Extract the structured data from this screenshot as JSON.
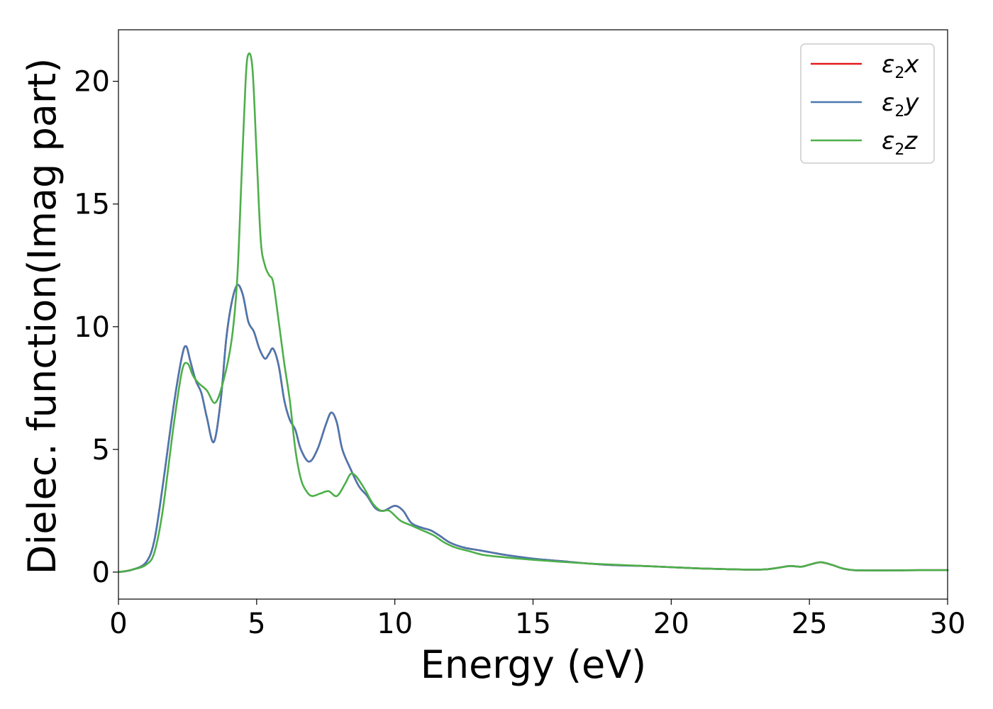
{
  "chart_data": {
    "type": "line",
    "xlabel": "Energy (eV)",
    "ylabel": "Dielec. function(Imag part)",
    "xlim": [
      0,
      30
    ],
    "ylim": [
      -1.1,
      22.1
    ],
    "xticks": [
      0,
      5,
      10,
      15,
      20,
      25,
      30
    ],
    "yticks": [
      0,
      5,
      10,
      15,
      20
    ],
    "grid": false,
    "legend_position": "top-right",
    "series": [
      {
        "name": "ε2x",
        "legend": {
          "base": "ε",
          "sub": "2",
          "suffix": "x"
        },
        "color": "#e41a1c",
        "x": [
          0,
          0.5,
          1.0,
          1.3,
          1.6,
          2.0,
          2.3,
          2.45,
          2.6,
          2.8,
          3.0,
          3.2,
          3.45,
          3.7,
          3.9,
          4.1,
          4.3,
          4.5,
          4.7,
          4.9,
          5.1,
          5.3,
          5.45,
          5.6,
          5.8,
          6.0,
          6.2,
          6.4,
          6.6,
          6.9,
          7.2,
          7.5,
          7.7,
          7.9,
          8.1,
          8.4,
          8.7,
          9.0,
          9.3,
          9.6,
          10.0,
          10.3,
          10.6,
          11.0,
          11.3,
          11.6,
          12.0,
          12.5,
          13.0,
          13.5,
          14.0,
          15.0,
          16.0,
          17.0,
          18.0,
          19.0,
          20.0,
          21.0,
          22.0,
          23.0,
          23.5,
          24.0,
          24.3,
          24.7,
          25.0,
          25.4,
          25.8,
          26.2,
          26.6,
          27.0,
          28.0,
          29.0,
          30.0
        ],
        "values": [
          0,
          0.1,
          0.4,
          1.3,
          3.5,
          6.8,
          8.8,
          9.2,
          8.6,
          7.8,
          7.3,
          6.3,
          5.3,
          7.0,
          9.5,
          11.0,
          11.7,
          11.3,
          10.2,
          9.8,
          9.1,
          8.7,
          8.9,
          9.1,
          8.4,
          7.0,
          6.2,
          5.8,
          5.0,
          4.5,
          5.0,
          6.0,
          6.5,
          6.1,
          5.0,
          4.2,
          3.5,
          3.1,
          2.6,
          2.5,
          2.7,
          2.5,
          2.0,
          1.8,
          1.7,
          1.5,
          1.2,
          1.0,
          0.9,
          0.8,
          0.7,
          0.55,
          0.45,
          0.35,
          0.28,
          0.25,
          0.2,
          0.15,
          0.12,
          0.1,
          0.12,
          0.2,
          0.25,
          0.22,
          0.3,
          0.4,
          0.3,
          0.15,
          0.08,
          0.07,
          0.07,
          0.08,
          0.08
        ]
      },
      {
        "name": "ε2y",
        "legend": {
          "base": "ε",
          "sub": "2",
          "suffix": "y"
        },
        "color": "#4a78b0",
        "x": [
          0,
          0.5,
          1.0,
          1.3,
          1.6,
          2.0,
          2.3,
          2.45,
          2.6,
          2.8,
          3.0,
          3.2,
          3.45,
          3.7,
          3.9,
          4.1,
          4.3,
          4.5,
          4.7,
          4.9,
          5.1,
          5.3,
          5.45,
          5.6,
          5.8,
          6.0,
          6.2,
          6.4,
          6.6,
          6.9,
          7.2,
          7.5,
          7.7,
          7.9,
          8.1,
          8.4,
          8.7,
          9.0,
          9.3,
          9.6,
          10.0,
          10.3,
          10.6,
          11.0,
          11.3,
          11.6,
          12.0,
          12.5,
          13.0,
          13.5,
          14.0,
          15.0,
          16.0,
          17.0,
          18.0,
          19.0,
          20.0,
          21.0,
          22.0,
          23.0,
          23.5,
          24.0,
          24.3,
          24.7,
          25.0,
          25.4,
          25.8,
          26.2,
          26.6,
          27.0,
          28.0,
          29.0,
          30.0
        ],
        "values": [
          0,
          0.1,
          0.4,
          1.3,
          3.5,
          6.8,
          8.8,
          9.2,
          8.6,
          7.8,
          7.3,
          6.3,
          5.3,
          7.0,
          9.5,
          11.0,
          11.7,
          11.3,
          10.2,
          9.8,
          9.1,
          8.7,
          8.9,
          9.1,
          8.4,
          7.0,
          6.2,
          5.8,
          5.0,
          4.5,
          5.0,
          6.0,
          6.5,
          6.1,
          5.0,
          4.2,
          3.5,
          3.1,
          2.6,
          2.5,
          2.7,
          2.5,
          2.0,
          1.8,
          1.7,
          1.5,
          1.2,
          1.0,
          0.9,
          0.8,
          0.7,
          0.55,
          0.45,
          0.35,
          0.28,
          0.25,
          0.2,
          0.15,
          0.12,
          0.1,
          0.12,
          0.2,
          0.25,
          0.22,
          0.3,
          0.4,
          0.3,
          0.15,
          0.08,
          0.07,
          0.07,
          0.08,
          0.08
        ]
      },
      {
        "name": "ε2z",
        "legend": {
          "base": "ε",
          "sub": "2",
          "suffix": "z"
        },
        "color": "#4daf4a",
        "x": [
          0,
          0.5,
          1.0,
          1.3,
          1.6,
          2.0,
          2.3,
          2.5,
          2.7,
          2.9,
          3.2,
          3.5,
          3.8,
          4.1,
          4.3,
          4.45,
          4.6,
          4.7,
          4.85,
          5.0,
          5.15,
          5.3,
          5.45,
          5.6,
          5.8,
          6.0,
          6.2,
          6.4,
          6.6,
          6.8,
          7.0,
          7.3,
          7.6,
          7.9,
          8.2,
          8.4,
          8.6,
          8.9,
          9.2,
          9.5,
          9.8,
          10.2,
          10.6,
          11.0,
          11.4,
          11.8,
          12.2,
          12.7,
          13.2,
          14.0,
          15.0,
          16.0,
          17.0,
          18.0,
          19.0,
          20.0,
          21.0,
          22.0,
          23.0,
          23.5,
          24.0,
          24.3,
          24.7,
          25.0,
          25.4,
          25.8,
          26.2,
          26.6,
          27.0,
          28.0,
          29.0,
          30.0
        ],
        "values": [
          0,
          0.1,
          0.3,
          0.8,
          2.5,
          6.0,
          8.2,
          8.5,
          8.0,
          7.7,
          7.4,
          6.9,
          7.8,
          9.5,
          12.0,
          16.0,
          20.0,
          21.1,
          20.5,
          17.0,
          13.5,
          12.5,
          12.1,
          11.8,
          10.2,
          8.5,
          7.0,
          5.0,
          3.8,
          3.3,
          3.1,
          3.2,
          3.3,
          3.1,
          3.6,
          4.0,
          3.9,
          3.4,
          2.8,
          2.5,
          2.5,
          2.1,
          1.9,
          1.7,
          1.5,
          1.2,
          1.0,
          0.85,
          0.7,
          0.6,
          0.5,
          0.42,
          0.35,
          0.3,
          0.25,
          0.2,
          0.15,
          0.12,
          0.1,
          0.12,
          0.2,
          0.25,
          0.22,
          0.3,
          0.4,
          0.3,
          0.15,
          0.08,
          0.07,
          0.07,
          0.08,
          0.08
        ]
      }
    ]
  }
}
